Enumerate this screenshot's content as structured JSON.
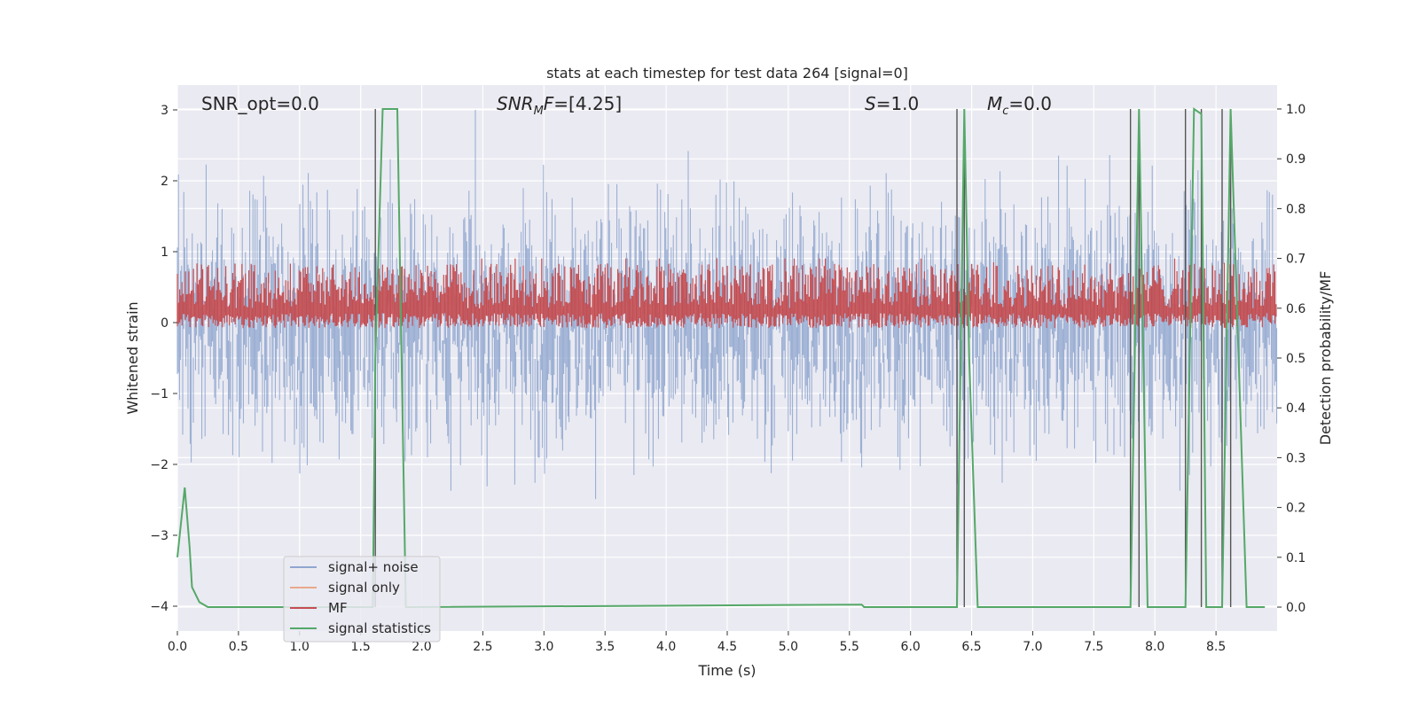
{
  "chart_data": {
    "type": "line",
    "title": "stats at each timestep for test data 264 [signal=0]",
    "xlabel": "Time (s)",
    "ylabel_left": "Whitened strain",
    "ylabel_right": "Detection probability/MF",
    "xlim": [
      0.0,
      9.0
    ],
    "ylim_left": [
      -4.35,
      3.35
    ],
    "ylim_right": [
      -0.048,
      1.048
    ],
    "x_ticks": [
      0.0,
      0.5,
      1.0,
      1.5,
      2.0,
      2.5,
      3.0,
      3.5,
      4.0,
      4.5,
      5.0,
      5.5,
      6.0,
      6.5,
      7.0,
      7.5,
      8.0,
      8.5
    ],
    "x_tick_labels": [
      "0.0",
      "0.5",
      "1.0",
      "1.5",
      "2.0",
      "2.5",
      "3.0",
      "3.5",
      "4.0",
      "4.5",
      "5.0",
      "5.5",
      "6.0",
      "6.5",
      "7.0",
      "7.5",
      "8.0",
      "8.5"
    ],
    "y_left_ticks": [
      -4,
      -3,
      -2,
      -1,
      0,
      1,
      2,
      3
    ],
    "y_left_tick_labels": [
      "−4",
      "−3",
      "−2",
      "−1",
      "0",
      "1",
      "2",
      "3"
    ],
    "y_right_ticks": [
      0.0,
      0.1,
      0.2,
      0.3,
      0.4,
      0.5,
      0.6,
      0.7,
      0.8,
      0.9,
      1.0
    ],
    "y_right_tick_labels": [
      "0.0",
      "0.1",
      "0.2",
      "0.3",
      "0.4",
      "0.5",
      "0.6",
      "0.7",
      "0.8",
      "0.9",
      "1.0"
    ],
    "grid": true,
    "annotations": [
      {
        "text": "SNR_opt=0.0"
      },
      {
        "text": "SNR_MF=[4.25]"
      },
      {
        "text": "S=1.0"
      },
      {
        "text": "M_c=0.0"
      }
    ],
    "legend": {
      "placement": "lower-left",
      "entries": [
        "signal+ noise",
        "signal only",
        "MF",
        "signal statistics"
      ]
    },
    "series": [
      {
        "name": "signal+ noise",
        "axis": "left",
        "color": "#8fa6cf",
        "description": "whitened strain noise, approx. within [-3.6, 3.0], mean ~0, std ~1"
      },
      {
        "name": "signal only",
        "axis": "left",
        "color": "#e9a88b",
        "values": []
      },
      {
        "name": "MF",
        "axis": "right",
        "color": "#c44e52",
        "band": [
          0.56,
          0.69
        ],
        "mean": 0.6
      },
      {
        "name": "signal statistics",
        "axis": "right",
        "color": "#55a868",
        "x": [
          0.0,
          0.06,
          0.1,
          0.12,
          0.18,
          0.25,
          1.6,
          1.62,
          1.68,
          1.8,
          1.87,
          1.93,
          6.38,
          6.44,
          6.48,
          6.55,
          7.8,
          7.87,
          7.94,
          8.25,
          8.32,
          8.38,
          8.42,
          8.48,
          8.55,
          8.62,
          8.75,
          8.9
        ],
        "values": [
          0.1,
          0.24,
          0.12,
          0.04,
          0.01,
          0.0,
          0.0,
          0.5,
          1.0,
          1.0,
          0.0,
          0.0,
          0.0,
          1.0,
          0.5,
          0.0,
          0.0,
          1.0,
          0.0,
          0.0,
          1.0,
          0.99,
          0.0,
          0.0,
          0.0,
          1.0,
          0.0,
          0.0
        ],
        "extra_points": [
          {
            "x": 5.6,
            "value": 0.005
          },
          {
            "x": 5.62,
            "value": 0.0
          }
        ]
      }
    ],
    "vertical_markers_x": [
      1.62,
      6.38,
      6.44,
      7.8,
      7.87,
      8.25,
      8.38,
      8.55,
      8.62
    ],
    "vertical_markers_color": "#555555"
  }
}
